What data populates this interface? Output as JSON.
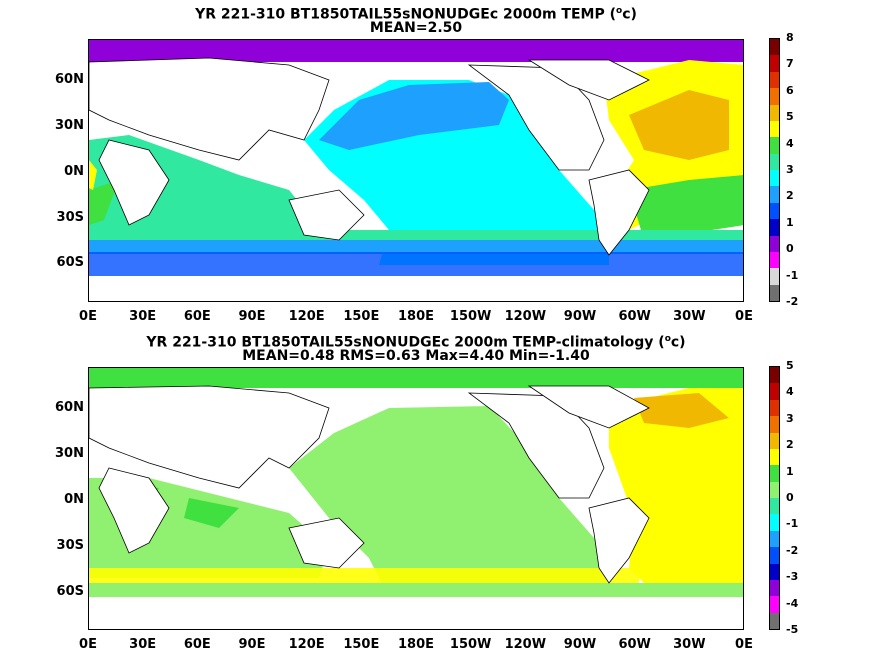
{
  "panel1": {
    "title1": "YR 221-310 BT1850TAIL55sNONUDGEc 2000m TEMP (",
    "title1_sup": "o",
    "title1_end": "c)",
    "title2": "MEAN=2.50",
    "colorbar_labels": [
      "8",
      "7",
      "6",
      "5",
      "4",
      "3",
      "2",
      "1",
      "0",
      "-1",
      "-2"
    ],
    "colors": [
      "#7a0000",
      "#c00000",
      "#e03000",
      "#f07000",
      "#f0b800",
      "#ffff00",
      "#40e040",
      "#30e8a0",
      "#00ffff",
      "#1ea0ff",
      "#0050ff",
      "#0000c8",
      "#9000d8",
      "#ff00ff",
      "#d8d8d8",
      "#707070"
    ]
  },
  "panel2": {
    "title1": "YR 221-310 BT1850TAIL55sNONUDGEc 2000m TEMP-climatology (",
    "title1_sup": "o",
    "title1_end": "c)",
    "title2": "MEAN=0.48   RMS=0.63   Max=4.40   Min=-1.40",
    "colorbar_labels": [
      "5",
      "4",
      "3",
      "2",
      "1",
      "0",
      "-1",
      "-2",
      "-3",
      "-4",
      "-5"
    ],
    "colors": [
      "#7a0000",
      "#c00000",
      "#e03000",
      "#f07000",
      "#f0b800",
      "#ffff00",
      "#40e040",
      "#90f070",
      "#30e8a0",
      "#00ffff",
      "#1ea0ff",
      "#0050ff",
      "#0000c8",
      "#9000d8",
      "#ff00ff",
      "#707070"
    ]
  },
  "lat_labels": [
    "60N",
    "30N",
    "0N",
    "30S",
    "60S"
  ],
  "lon_labels": [
    "0E",
    "30E",
    "60E",
    "90E",
    "120E",
    "150E",
    "180E",
    "150W",
    "120W",
    "90W",
    "60W",
    "30W",
    "0E"
  ]
}
